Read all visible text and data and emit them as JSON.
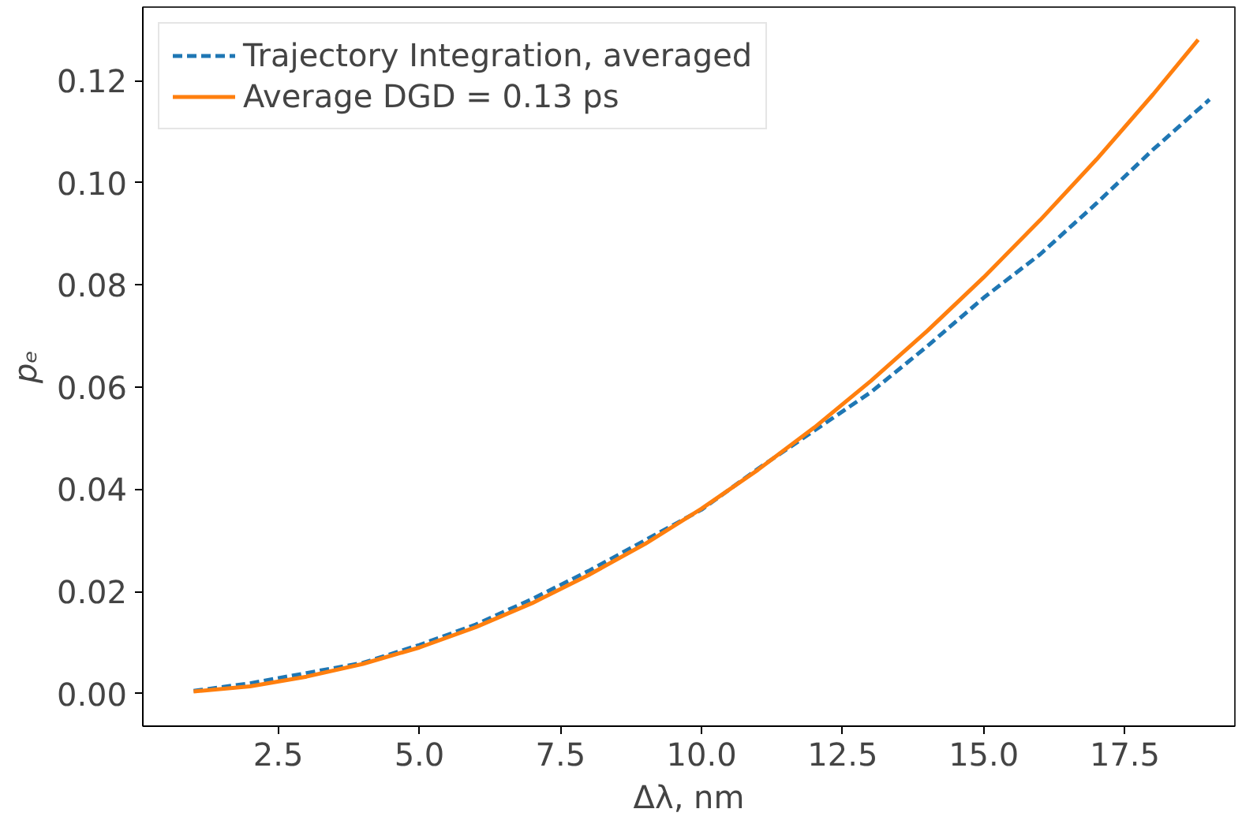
{
  "chart_data": {
    "type": "line",
    "xlabel": "Δλ, nm",
    "ylabel": "pₑ",
    "xlim": [
      0.1,
      19.45
    ],
    "ylim": [
      -0.0064,
      0.1344
    ],
    "xticks": [
      {
        "value": 2.5,
        "label": "2.5"
      },
      {
        "value": 5.0,
        "label": "5.0"
      },
      {
        "value": 7.5,
        "label": "7.5"
      },
      {
        "value": 10.0,
        "label": "10.0"
      },
      {
        "value": 12.5,
        "label": "12.5"
      },
      {
        "value": 15.0,
        "label": "15.0"
      },
      {
        "value": 17.5,
        "label": "17.5"
      }
    ],
    "yticks": [
      {
        "value": 0.0,
        "label": "0.00"
      },
      {
        "value": 0.02,
        "label": "0.02"
      },
      {
        "value": 0.04,
        "label": "0.04"
      },
      {
        "value": 0.06,
        "label": "0.06"
      },
      {
        "value": 0.08,
        "label": "0.08"
      },
      {
        "value": 0.1,
        "label": "0.10"
      },
      {
        "value": 0.12,
        "label": "0.12"
      }
    ],
    "grid": false,
    "legend": "top left",
    "series": [
      {
        "name": "Trajectory Integration, averaged",
        "color": "#1f77b4",
        "line_style": "dashed",
        "x": [
          1,
          2,
          3,
          4,
          5,
          6,
          7,
          8,
          9,
          10,
          11,
          12,
          13,
          14,
          15,
          16,
          17,
          18,
          19
        ],
        "values": [
          0.0005,
          0.002,
          0.004,
          0.006,
          0.0095,
          0.0135,
          0.0185,
          0.024,
          0.03,
          0.036,
          0.044,
          0.0515,
          0.059,
          0.068,
          0.0775,
          0.086,
          0.096,
          0.1065,
          0.1163
        ]
      },
      {
        "name": "Average DGD = 0.13 ps",
        "color": "#ff7f0e",
        "line_style": "solid",
        "x": [
          1,
          2,
          3,
          4,
          5,
          6,
          7,
          8,
          9,
          10,
          11,
          12,
          13,
          14,
          15,
          16,
          17,
          18,
          18.8
        ],
        "values": [
          0.0004,
          0.0014,
          0.0033,
          0.0058,
          0.009,
          0.013,
          0.0177,
          0.0232,
          0.0293,
          0.0362,
          0.0438,
          0.0521,
          0.0612,
          0.071,
          0.0815,
          0.0927,
          0.1046,
          0.1173,
          0.128
        ]
      }
    ]
  }
}
